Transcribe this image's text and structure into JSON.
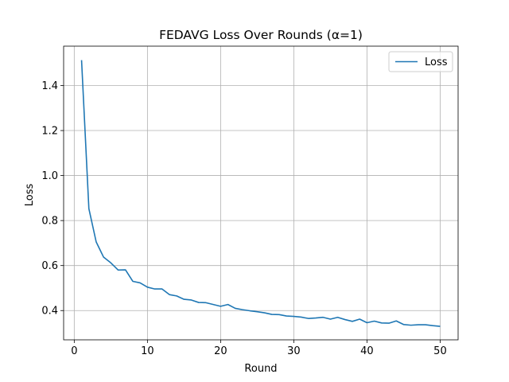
{
  "chart_data": {
    "type": "line",
    "title": "FEDAVG Loss Over Rounds (α=1)",
    "xlabel": "Round",
    "ylabel": "Loss",
    "xlim": [
      -1.45,
      52.45
    ],
    "ylim": [
      0.27,
      1.575
    ],
    "xticks": [
      0,
      10,
      20,
      30,
      40,
      50
    ],
    "xtick_labels": [
      "0",
      "10",
      "20",
      "30",
      "40",
      "50"
    ],
    "yticks": [
      0.4,
      0.6,
      0.8,
      1.0,
      1.2,
      1.4
    ],
    "ytick_labels": [
      "0.4",
      "0.6",
      "0.8",
      "1.0",
      "1.2",
      "1.4"
    ],
    "grid": true,
    "legend": "top-right",
    "series": [
      {
        "name": "Loss",
        "color": "#1f77b4",
        "x": [
          1,
          2,
          3,
          4,
          5,
          6,
          7,
          8,
          9,
          10,
          11,
          12,
          13,
          14,
          15,
          16,
          17,
          18,
          19,
          20,
          21,
          22,
          23,
          24,
          25,
          26,
          27,
          28,
          29,
          30,
          31,
          32,
          33,
          34,
          35,
          36,
          37,
          38,
          39,
          40,
          41,
          42,
          43,
          44,
          45,
          46,
          47,
          48,
          49,
          50
        ],
        "y": [
          1.513,
          0.853,
          0.705,
          0.638,
          0.612,
          0.58,
          0.581,
          0.53,
          0.523,
          0.504,
          0.496,
          0.496,
          0.471,
          0.465,
          0.45,
          0.447,
          0.436,
          0.435,
          0.427,
          0.419,
          0.427,
          0.41,
          0.404,
          0.399,
          0.395,
          0.39,
          0.383,
          0.382,
          0.376,
          0.374,
          0.371,
          0.365,
          0.367,
          0.37,
          0.362,
          0.37,
          0.36,
          0.352,
          0.362,
          0.346,
          0.353,
          0.345,
          0.344,
          0.354,
          0.338,
          0.335,
          0.337,
          0.337,
          0.333,
          0.33
        ]
      }
    ]
  }
}
